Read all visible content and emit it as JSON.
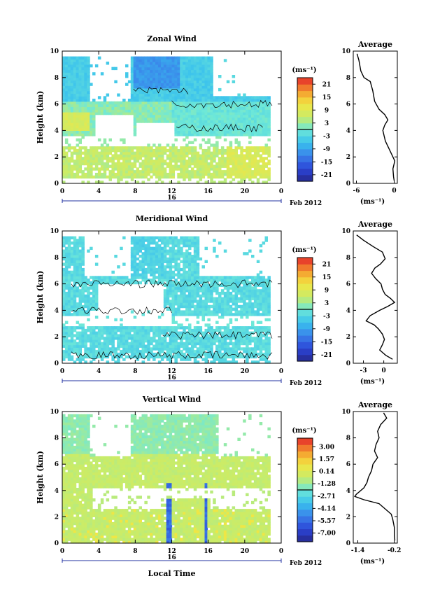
{
  "chart_data": [
    {
      "type": "heatmap",
      "title": "Zonal Wind",
      "ylabel": "Height (km)",
      "y_ticks": [
        "0",
        "2",
        "4",
        "6",
        "8",
        "10"
      ],
      "x_ticks": [
        "0",
        "4",
        "8",
        "12",
        "16",
        "20",
        "0"
      ],
      "date_label": "16",
      "month_label": "Feb 2012",
      "xlim": [
        0,
        24
      ],
      "ylim": [
        0,
        10
      ],
      "colorbar": {
        "unit": "(ms⁻¹)",
        "ticks": [
          "21",
          "15",
          "9",
          "3",
          "-3",
          "-9",
          "-15",
          "-21"
        ],
        "range": [
          -24,
          24
        ]
      },
      "average_profile": {
        "title": "Average",
        "unit": "(ms⁻¹)",
        "x_ticks": [
          "-6",
          "0"
        ],
        "xlim": [
          -6.5,
          0.5
        ],
        "points": [
          [
            -5.9,
            9.8
          ],
          [
            -5.6,
            9.3
          ],
          [
            -5.3,
            8.5
          ],
          [
            -4.8,
            8.0
          ],
          [
            -3.8,
            7.7
          ],
          [
            -3.4,
            7.0
          ],
          [
            -3.1,
            6.2
          ],
          [
            -2.4,
            5.6
          ],
          [
            -1.5,
            5.2
          ],
          [
            -1.0,
            4.8
          ],
          [
            -1.5,
            4.4
          ],
          [
            -1.8,
            4.0
          ],
          [
            -1.6,
            3.6
          ],
          [
            -1.4,
            3.2
          ],
          [
            -1.0,
            2.8
          ],
          [
            -0.4,
            2.2
          ],
          [
            0.1,
            1.7
          ],
          [
            -0.2,
            1.1
          ],
          [
            -0.1,
            0.5
          ],
          [
            0.0,
            0.2
          ]
        ]
      }
    },
    {
      "type": "heatmap",
      "title": "Meridional Wind",
      "ylabel": "Height (km)",
      "y_ticks": [
        "0",
        "2",
        "4",
        "6",
        "8",
        "10"
      ],
      "x_ticks": [
        "0",
        "4",
        "8",
        "12",
        "16",
        "20",
        "0"
      ],
      "date_label": "16",
      "month_label": "Feb 2012",
      "xlim": [
        0,
        24
      ],
      "ylim": [
        0,
        10
      ],
      "colorbar": {
        "unit": "(ms⁻¹)",
        "ticks": [
          "21",
          "15",
          "9",
          "3",
          "-3",
          "-9",
          "-15",
          "-21"
        ],
        "range": [
          -24,
          24
        ]
      },
      "average_profile": {
        "title": "Average",
        "unit": "(ms⁻¹)",
        "x_ticks": [
          "-3",
          "0"
        ],
        "xlim": [
          -4.5,
          2.0
        ],
        "points": [
          [
            -4.0,
            9.7
          ],
          [
            -3.0,
            9.3
          ],
          [
            -1.5,
            8.8
          ],
          [
            -0.2,
            8.4
          ],
          [
            0.2,
            7.9
          ],
          [
            -0.5,
            7.5
          ],
          [
            -1.3,
            7.2
          ],
          [
            -1.8,
            6.8
          ],
          [
            -1.2,
            6.4
          ],
          [
            -0.4,
            6.0
          ],
          [
            -0.2,
            5.6
          ],
          [
            0.2,
            5.2
          ],
          [
            1.0,
            4.9
          ],
          [
            1.6,
            4.6
          ],
          [
            0.6,
            4.3
          ],
          [
            -0.6,
            4.0
          ],
          [
            -2.0,
            3.6
          ],
          [
            -2.6,
            3.2
          ],
          [
            -1.4,
            2.9
          ],
          [
            -0.8,
            2.6
          ],
          [
            -0.2,
            2.2
          ],
          [
            0.1,
            1.8
          ],
          [
            -0.2,
            1.4
          ],
          [
            -0.6,
            1.0
          ],
          [
            0.3,
            0.6
          ],
          [
            1.3,
            0.3
          ]
        ]
      }
    },
    {
      "type": "heatmap",
      "title": "Vertical Wind",
      "ylabel": "Height (km)",
      "xlabel": "Local Time",
      "y_ticks": [
        "0",
        "2",
        "4",
        "6",
        "8",
        "10"
      ],
      "x_ticks": [
        "0",
        "4",
        "8",
        "12",
        "16",
        "20",
        "0"
      ],
      "date_label": "16",
      "month_label": "Feb 2012",
      "xlim": [
        0,
        24
      ],
      "ylim": [
        0,
        10
      ],
      "colorbar": {
        "unit": "(ms⁻¹)",
        "ticks": [
          "3.00",
          "1.57",
          "0.14",
          "-1.28",
          "-2.71",
          "-4.14",
          "-5.57",
          "-7.00"
        ],
        "range": [
          -8,
          4
        ]
      },
      "average_profile": {
        "title": "Average",
        "unit": "(ms⁻¹)",
        "x_ticks": [
          "-1.4",
          "-0.2"
        ],
        "xlim": [
          -1.55,
          -0.1
        ],
        "points": [
          [
            -0.55,
            9.9
          ],
          [
            -0.45,
            9.5
          ],
          [
            -0.65,
            9.0
          ],
          [
            -0.75,
            8.5
          ],
          [
            -0.7,
            8.0
          ],
          [
            -0.8,
            7.5
          ],
          [
            -0.85,
            7.0
          ],
          [
            -0.75,
            6.5
          ],
          [
            -0.9,
            6.0
          ],
          [
            -0.95,
            5.5
          ],
          [
            -1.05,
            5.0
          ],
          [
            -1.1,
            4.6
          ],
          [
            -1.2,
            4.2
          ],
          [
            -1.45,
            3.7
          ],
          [
            -1.5,
            3.55
          ],
          [
            -1.2,
            3.3
          ],
          [
            -0.7,
            3.0
          ],
          [
            -0.5,
            2.6
          ],
          [
            -0.3,
            2.2
          ],
          [
            -0.25,
            1.8
          ],
          [
            -0.2,
            1.2
          ],
          [
            -0.2,
            0.6
          ],
          [
            -0.18,
            0.2
          ]
        ]
      }
    }
  ]
}
